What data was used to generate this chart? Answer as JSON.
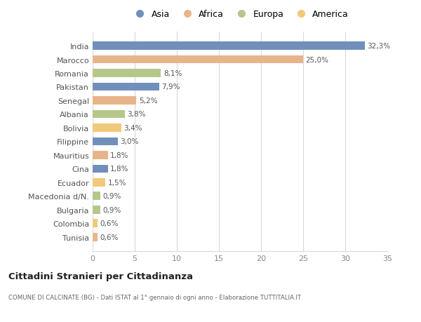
{
  "categories": [
    "India",
    "Marocco",
    "Romania",
    "Pakistan",
    "Senegal",
    "Albania",
    "Bolivia",
    "Filippine",
    "Mauritius",
    "Cina",
    "Ecuador",
    "Macedonia d/N.",
    "Bulgaria",
    "Colombia",
    "Tunisia"
  ],
  "values": [
    32.3,
    25.0,
    8.1,
    7.9,
    5.2,
    3.8,
    3.4,
    3.0,
    1.8,
    1.8,
    1.5,
    0.9,
    0.9,
    0.6,
    0.6
  ],
  "labels": [
    "32,3%",
    "25,0%",
    "8,1%",
    "7,9%",
    "5,2%",
    "3,8%",
    "3,4%",
    "3,0%",
    "1,8%",
    "1,8%",
    "1,5%",
    "0,9%",
    "0,9%",
    "0,6%",
    "0,6%"
  ],
  "colors": [
    "#7090bb",
    "#e8b48a",
    "#b5c78a",
    "#7090bb",
    "#e8b48a",
    "#b5c78a",
    "#f0c97a",
    "#7090bb",
    "#e8b48a",
    "#7090bb",
    "#f0c97a",
    "#b5c78a",
    "#b5c78a",
    "#f0c97a",
    "#e8b48a"
  ],
  "legend": [
    {
      "label": "Asia",
      "color": "#7090bb"
    },
    {
      "label": "Africa",
      "color": "#e8b48a"
    },
    {
      "label": "Europa",
      "color": "#b5c78a"
    },
    {
      "label": "America",
      "color": "#f0c97a"
    }
  ],
  "title": "Cittadini Stranieri per Cittadinanza",
  "subtitle": "COMUNE DI CALCINATE (BG) - Dati ISTAT al 1° gennaio di ogni anno - Elaborazione TUTTITALIA.IT",
  "xlim": [
    0,
    35
  ],
  "xticks": [
    0,
    5,
    10,
    15,
    20,
    25,
    30,
    35
  ],
  "background_color": "#ffffff",
  "grid_color": "#d8d8d8"
}
